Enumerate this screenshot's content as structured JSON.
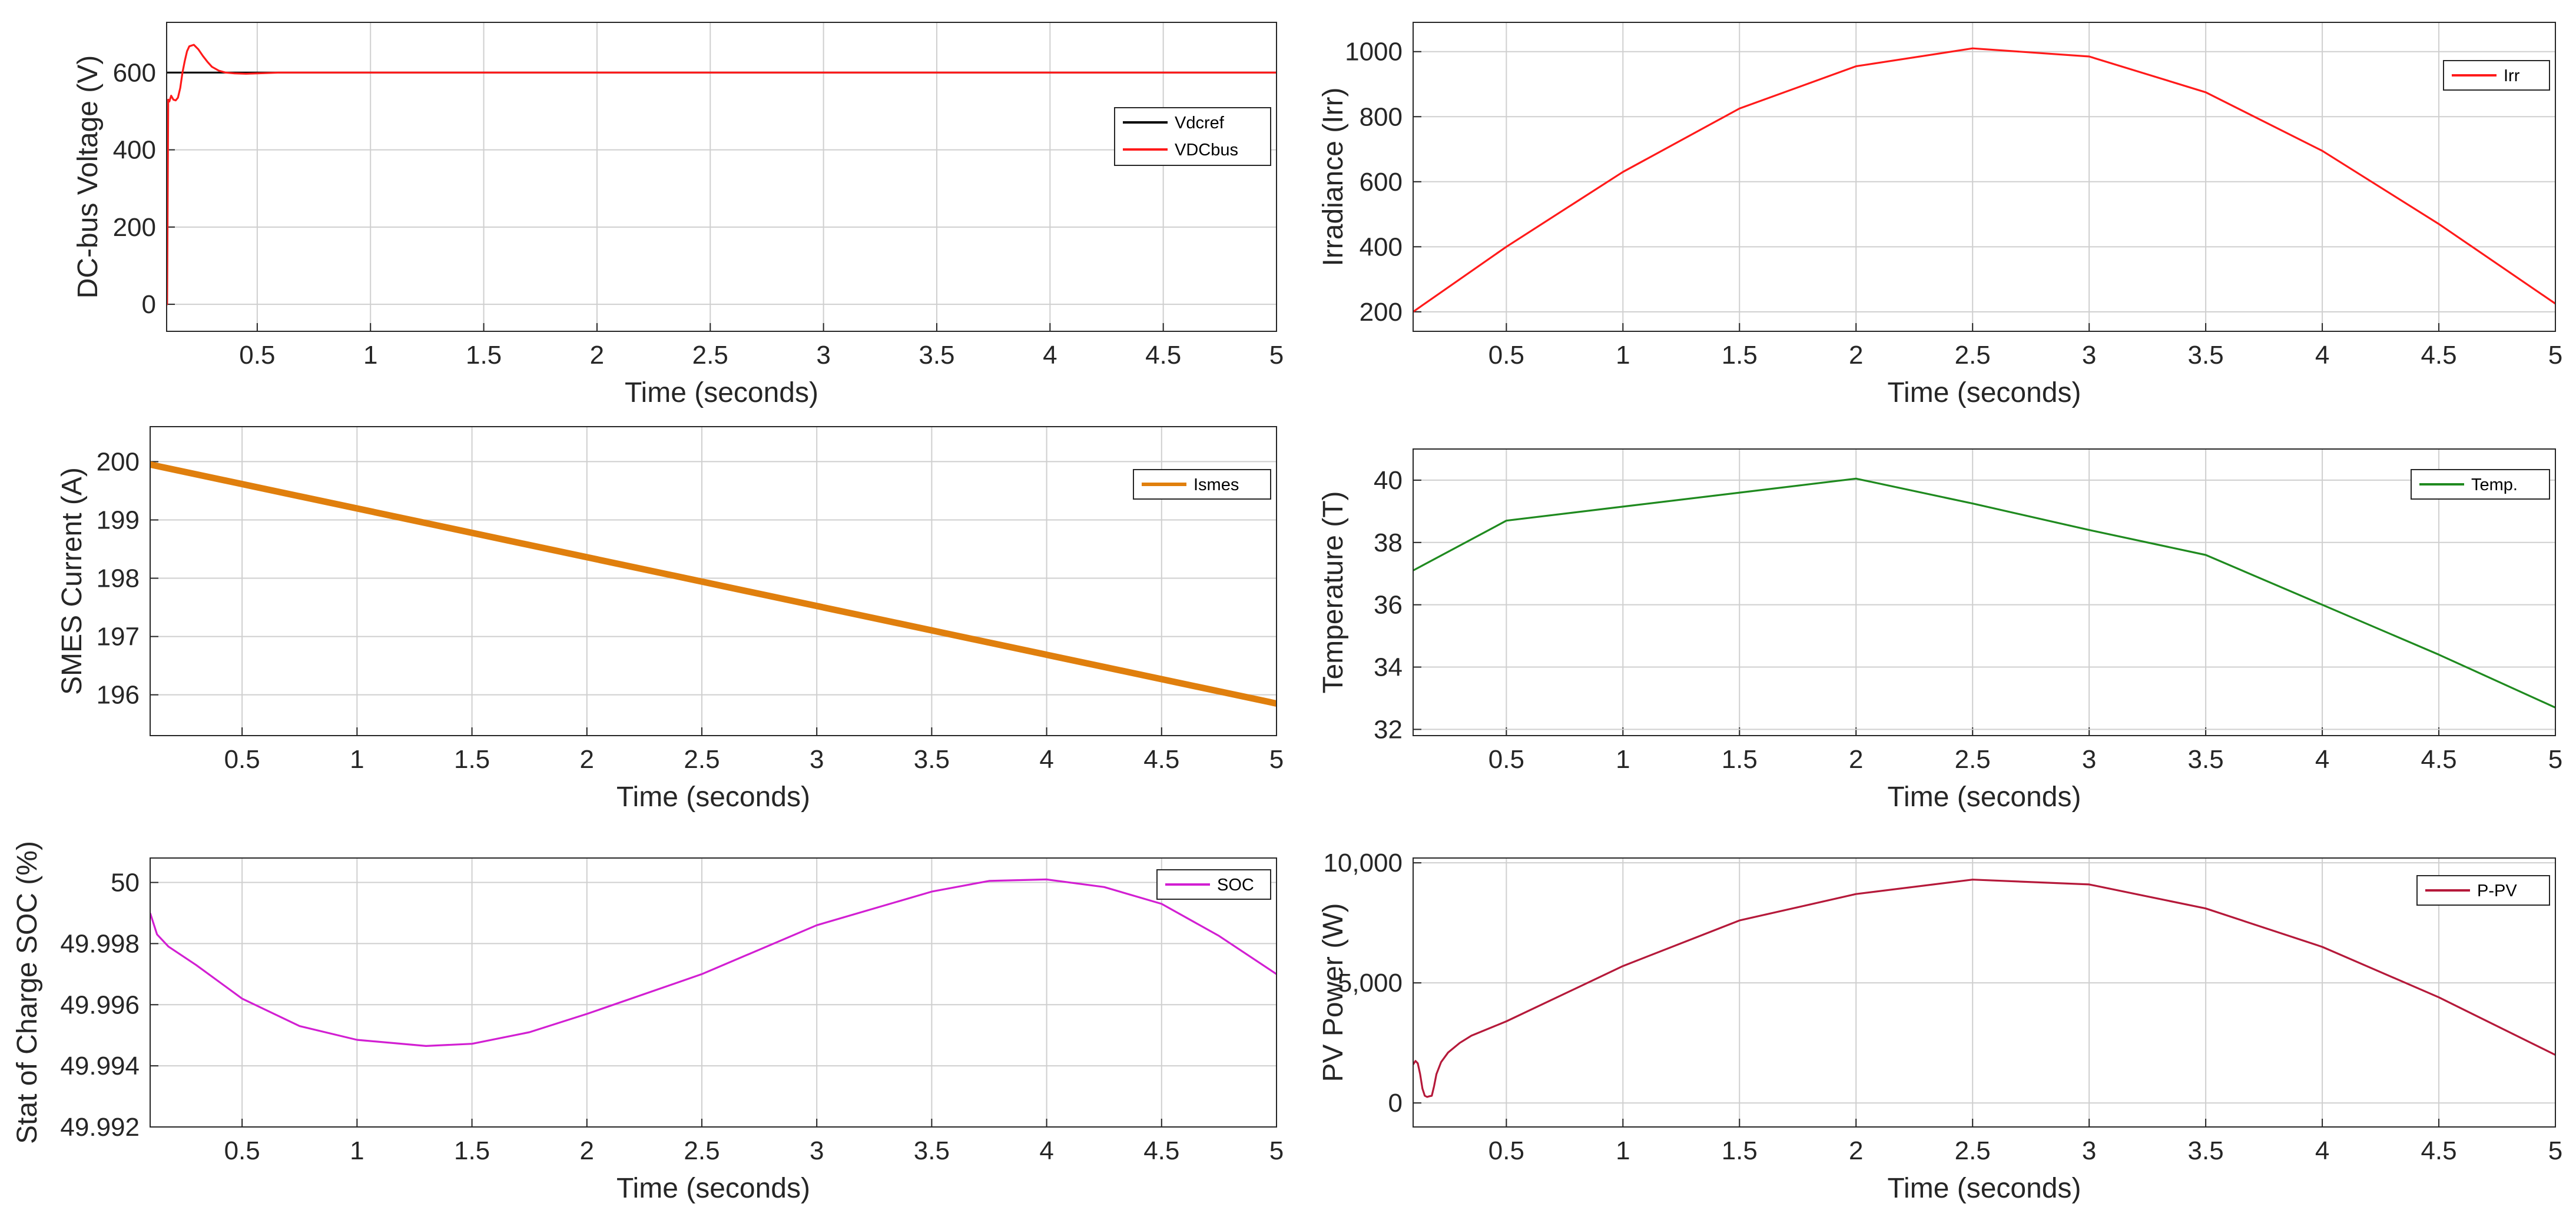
{
  "chart_data": [
    {
      "id": "vdc",
      "type": "line",
      "xlabel": "Time (seconds)",
      "ylabel": "DC-bus Voltage (V)",
      "xlim": [
        0.1,
        5
      ],
      "ylim": [
        -70,
        730
      ],
      "xticks": [
        0.5,
        1,
        1.5,
        2,
        2.5,
        3,
        3.5,
        4,
        4.5,
        5
      ],
      "xtick_labels": [
        "0.5",
        "1",
        "1.5",
        "2",
        "2.5",
        "3",
        "3.5",
        "4",
        "4.5",
        "5"
      ],
      "yticks": [
        0,
        200,
        400,
        600
      ],
      "ytick_labels": [
        "0",
        "200",
        "400",
        "600"
      ],
      "grid": true,
      "legend_position": "right-middle",
      "series": [
        {
          "name": "Vdcref",
          "color": "#000000",
          "width": 1,
          "x": [
            0.1,
            5
          ],
          "y": [
            600,
            600
          ]
        },
        {
          "name": "VDCbus",
          "color": "#ff1a1a",
          "width": 1,
          "x": [
            0.1,
            0.102,
            0.107,
            0.112,
            0.12,
            0.13,
            0.14,
            0.15,
            0.16,
            0.17,
            0.18,
            0.19,
            0.2,
            0.22,
            0.24,
            0.26,
            0.28,
            0.3,
            0.33,
            0.36,
            0.4,
            0.45,
            0.5,
            0.6,
            0.7,
            1,
            2,
            3,
            4,
            5
          ],
          "y": [
            0,
            0,
            530,
            525,
            540,
            530,
            528,
            535,
            560,
            600,
            630,
            655,
            668,
            672,
            660,
            643,
            628,
            615,
            605,
            600,
            598,
            597,
            598,
            600,
            600,
            600,
            600,
            600,
            600,
            600
          ]
        }
      ]
    },
    {
      "id": "irr",
      "type": "line",
      "xlabel": "Time (seconds)",
      "ylabel": "Irradiance (Irr)",
      "xlim": [
        0.1,
        5
      ],
      "ylim": [
        140,
        1090
      ],
      "xticks": [
        0.5,
        1,
        1.5,
        2,
        2.5,
        3,
        3.5,
        4,
        4.5,
        5
      ],
      "xtick_labels": [
        "0.5",
        "1",
        "1.5",
        "2",
        "2.5",
        "3",
        "3.5",
        "4",
        "4.5",
        "5"
      ],
      "yticks": [
        200,
        400,
        600,
        800,
        1000
      ],
      "ytick_labels": [
        "200",
        "400",
        "600",
        "800",
        "1000"
      ],
      "grid": true,
      "legend_position": "top-right",
      "series": [
        {
          "name": "Irr",
          "color": "#ff1a1a",
          "width": 1,
          "x": [
            0.1,
            0.5,
            1,
            1.5,
            2,
            2.5,
            3,
            3.5,
            4,
            4.5,
            5
          ],
          "y": [
            200,
            400,
            630,
            825,
            955,
            1010,
            985,
            875,
            695,
            470,
            225
          ]
        }
      ]
    },
    {
      "id": "ismes",
      "type": "line",
      "xlabel": "Time (seconds)",
      "ylabel": "SMES Current (A)",
      "xlim": [
        0.1,
        5
      ],
      "ylim": [
        195.3,
        200.6
      ],
      "xticks": [
        0.5,
        1,
        1.5,
        2,
        2.5,
        3,
        3.5,
        4,
        4.5,
        5
      ],
      "xtick_labels": [
        "0.5",
        "1",
        "1.5",
        "2",
        "2.5",
        "3",
        "3.5",
        "4",
        "4.5",
        "5"
      ],
      "yticks": [
        196,
        197,
        198,
        199,
        200
      ],
      "ytick_labels": [
        "196",
        "197",
        "198",
        "199",
        "200"
      ],
      "grid": true,
      "legend_position": "top-right",
      "series": [
        {
          "name": "Ismes",
          "color": "#e07f0d",
          "width": 5,
          "x": [
            0.1,
            5
          ],
          "y": [
            199.95,
            195.85
          ]
        }
      ]
    },
    {
      "id": "temp",
      "type": "line",
      "xlabel": "Time (seconds)",
      "ylabel": "Temperature (T)",
      "xlim": [
        0.1,
        5
      ],
      "ylim": [
        31.8,
        41
      ],
      "xticks": [
        0.5,
        1,
        1.5,
        2,
        2.5,
        3,
        3.5,
        4,
        4.5,
        5
      ],
      "xtick_labels": [
        "0.5",
        "1",
        "1.5",
        "2",
        "2.5",
        "3",
        "3.5",
        "4",
        "4.5",
        "5"
      ],
      "yticks": [
        32,
        34,
        36,
        38,
        40
      ],
      "ytick_labels": [
        "32",
        "34",
        "36",
        "38",
        "40"
      ],
      "grid": true,
      "legend_position": "top-right",
      "series": [
        {
          "name": "Temp.",
          "color": "#1f8a1f",
          "width": 1,
          "x": [
            0.1,
            0.5,
            1,
            1.5,
            2,
            2.5,
            3,
            3.5,
            4,
            4.5,
            5
          ],
          "y": [
            37.1,
            38.7,
            39.15,
            39.6,
            40.05,
            39.25,
            38.4,
            37.6,
            36.0,
            34.4,
            32.7
          ]
        }
      ]
    },
    {
      "id": "soc",
      "type": "line",
      "xlabel": "Time (seconds)",
      "ylabel": "Stat of Charge SOC (%)",
      "xlim": [
        0.1,
        5
      ],
      "ylim": [
        49.992,
        50.0008
      ],
      "xticks": [
        0.5,
        1,
        1.5,
        2,
        2.5,
        3,
        3.5,
        4,
        4.5,
        5
      ],
      "xtick_labels": [
        "0.5",
        "1",
        "1.5",
        "2",
        "2.5",
        "3",
        "3.5",
        "4",
        "4.5",
        "5"
      ],
      "yticks": [
        49.992,
        49.994,
        49.996,
        49.998,
        50
      ],
      "ytick_labels": [
        "49.992",
        "49.994",
        "49.996",
        "49.998",
        "50"
      ],
      "grid": true,
      "legend_position": "top-right",
      "series": [
        {
          "name": "SOC",
          "color": "#d21fd2",
          "width": 1,
          "x": [
            0.1,
            0.13,
            0.18,
            0.3,
            0.5,
            0.75,
            1,
            1.3,
            1.5,
            1.75,
            2,
            2.5,
            3,
            3.5,
            3.75,
            4,
            4.25,
            4.5,
            4.75,
            5
          ],
          "y": [
            49.999,
            49.9983,
            49.9979,
            49.9973,
            49.9962,
            49.9953,
            49.99485,
            49.99465,
            49.99472,
            49.9951,
            49.9957,
            49.997,
            49.9986,
            49.9997,
            50.00005,
            50.0001,
            49.99985,
            49.9993,
            49.99825,
            49.997
          ]
        }
      ]
    },
    {
      "id": "ppv",
      "type": "line",
      "xlabel": "Time (seconds)",
      "ylabel": "PV Power (W)",
      "xlim": [
        0.1,
        5
      ],
      "ylim": [
        -1000,
        10200
      ],
      "xticks": [
        0.5,
        1,
        1.5,
        2,
        2.5,
        3,
        3.5,
        4,
        4.5,
        5
      ],
      "xtick_labels": [
        "0.5",
        "1",
        "1.5",
        "2",
        "2.5",
        "3",
        "3.5",
        "4",
        "4.5",
        "5"
      ],
      "yticks": [
        0,
        5000,
        10000
      ],
      "ytick_labels": [
        "0",
        "5,000",
        "10,000"
      ],
      "grid": true,
      "legend_position": "top-right",
      "series": [
        {
          "name": "P-PV",
          "color": "#b5193a",
          "width": 1,
          "x": [
            0.1,
            0.11,
            0.12,
            0.13,
            0.14,
            0.15,
            0.16,
            0.17,
            0.18,
            0.19,
            0.2,
            0.22,
            0.25,
            0.3,
            0.35,
            0.5,
            1,
            1.5,
            2,
            2.5,
            3,
            3.5,
            4,
            4.5,
            5
          ],
          "y": [
            1600,
            1750,
            1650,
            1200,
            600,
            300,
            250,
            280,
            300,
            700,
            1200,
            1700,
            2100,
            2500,
            2800,
            3400,
            5700,
            7600,
            8700,
            9300,
            9100,
            8100,
            6500,
            4400,
            2000
          ]
        }
      ]
    }
  ]
}
